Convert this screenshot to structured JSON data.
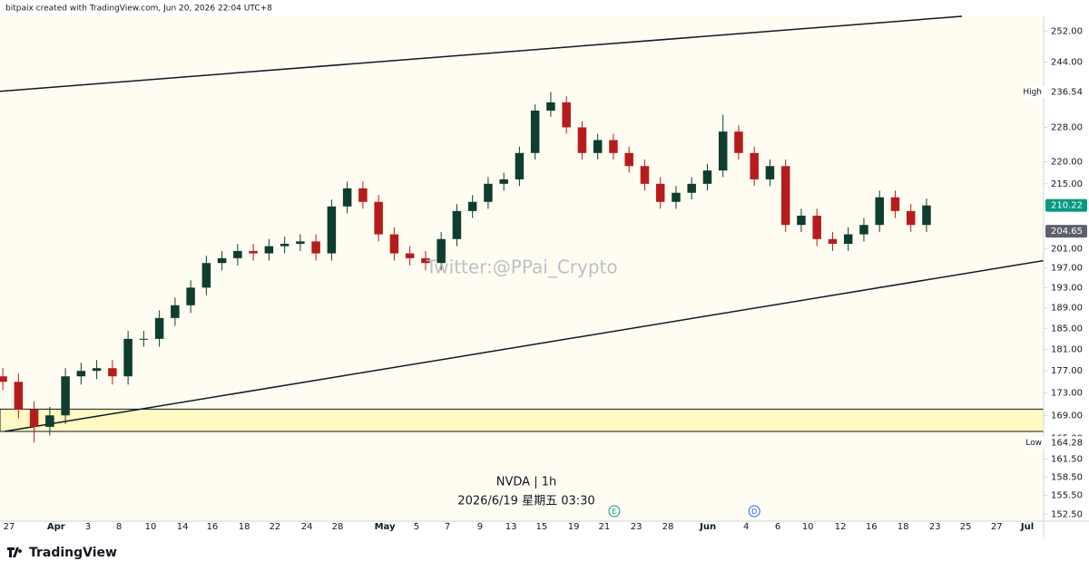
{
  "header": "bitpaix created with TradingView.com, Jun 20, 2026 22:04 UTC+8",
  "footer": "TradingView",
  "chart_data": {
    "type": "candlestick",
    "watermark": "Twitter:@PPai_Crypto",
    "legend": [
      "NVDA | 1h",
      "2026/6/19 星期五 03:30"
    ],
    "log_scale": true,
    "background": "#fffdf2",
    "up_color": "#0f3d2e",
    "down_color": "#b71c1c",
    "xlim": [
      -0.29,
      33.04
    ],
    "ylim": [
      151.4,
      255.9
    ],
    "xticks": [
      {
        "value": 0,
        "label": "27"
      },
      {
        "value": 1.5,
        "label": "Apr"
      },
      {
        "value": 2.52,
        "label": "3"
      },
      {
        "value": 3.51,
        "label": "8"
      },
      {
        "value": 4.52,
        "label": "10"
      },
      {
        "value": 5.54,
        "label": "14"
      },
      {
        "value": 6.49,
        "label": "16"
      },
      {
        "value": 7.51,
        "label": "18"
      },
      {
        "value": 8.49,
        "label": "22"
      },
      {
        "value": 9.51,
        "label": "24"
      },
      {
        "value": 10.49,
        "label": "28"
      },
      {
        "value": 12,
        "label": "May"
      },
      {
        "value": 13.01,
        "label": "5"
      },
      {
        "value": 14,
        "label": "7"
      },
      {
        "value": 15.04,
        "label": "9"
      },
      {
        "value": 16.03,
        "label": "13"
      },
      {
        "value": 17.01,
        "label": "15"
      },
      {
        "value": 18.03,
        "label": "19"
      },
      {
        "value": 19.01,
        "label": "21"
      },
      {
        "value": 20.03,
        "label": "23"
      },
      {
        "value": 21.04,
        "label": "28"
      },
      {
        "value": 22.32,
        "label": "Jun"
      },
      {
        "value": 23.54,
        "label": "4"
      },
      {
        "value": 24.55,
        "label": "6"
      },
      {
        "value": 25.51,
        "label": "10"
      },
      {
        "value": 26.55,
        "label": "12"
      },
      {
        "value": 27.54,
        "label": "16"
      },
      {
        "value": 28.55,
        "label": "18"
      },
      {
        "value": 29.57,
        "label": "23"
      },
      {
        "value": 30.55,
        "label": "25"
      },
      {
        "value": 31.54,
        "label": "27"
      },
      {
        "value": 32.52,
        "label": "Jul"
      }
    ],
    "yticks": [
      {
        "value": 252,
        "label": "252.00"
      },
      {
        "value": 244,
        "label": "244.00"
      },
      {
        "value": 228,
        "label": "228.00"
      },
      {
        "value": 220,
        "label": "220.00"
      },
      {
        "value": 215,
        "label": "215.00"
      },
      {
        "value": 201,
        "label": "201.00"
      },
      {
        "value": 197,
        "label": "197.00"
      },
      {
        "value": 193,
        "label": "193.00"
      },
      {
        "value": 189,
        "label": "189.00"
      },
      {
        "value": 185,
        "label": "185.00"
      },
      {
        "value": 181,
        "label": "181.00"
      },
      {
        "value": 177,
        "label": "177.00"
      },
      {
        "value": 173,
        "label": "173.00"
      },
      {
        "value": 169,
        "label": "169.00"
      },
      {
        "value": 165,
        "label": "165.00"
      },
      {
        "value": 161.5,
        "label": "161.50"
      },
      {
        "value": 158.5,
        "label": "158.50"
      },
      {
        "value": 155.5,
        "label": "155.50"
      },
      {
        "value": 152.5,
        "label": "152.50"
      }
    ],
    "x": [
      -0.2,
      0.3,
      0.8,
      1.3,
      1.8,
      2.3,
      2.8,
      3.3,
      3.8,
      4.3,
      4.8,
      5.3,
      5.8,
      6.3,
      6.8,
      7.3,
      7.8,
      8.3,
      8.8,
      9.3,
      9.8,
      10.3,
      10.8,
      11.3,
      11.8,
      12.3,
      12.8,
      13.3,
      13.8,
      14.3,
      14.8,
      15.3,
      15.8,
      16.3,
      16.8,
      17.3,
      17.8,
      18.3,
      18.8,
      19.3,
      19.8,
      20.3,
      20.8,
      21.3,
      21.8,
      22.3,
      22.8,
      23.3,
      23.8,
      24.3,
      24.8,
      25.3,
      25.8,
      26.3,
      26.8,
      27.3,
      27.8,
      28.3,
      28.8,
      29.3
    ],
    "open": [
      176,
      175,
      170,
      167,
      169,
      176,
      177,
      177.5,
      176,
      183,
      183,
      187,
      189.5,
      193,
      198,
      199,
      200.5,
      200,
      201.5,
      202,
      202.5,
      200,
      210,
      214,
      211,
      204,
      200,
      199,
      198,
      203,
      209,
      211,
      215,
      216,
      222,
      232,
      234,
      228,
      222,
      225,
      222,
      219,
      215,
      211,
      213,
      215,
      218,
      227,
      222,
      216,
      219,
      206,
      208,
      203,
      202,
      204,
      206,
      212,
      209,
      206
    ],
    "high": [
      177.5,
      176.5,
      171.5,
      170.5,
      177.5,
      178.5,
      179,
      179,
      184.5,
      184.5,
      188.5,
      191,
      194.5,
      199.5,
      200.5,
      202,
      202,
      203,
      203.5,
      204,
      204,
      211.5,
      215.5,
      215.5,
      212.5,
      205.5,
      201.5,
      200.5,
      204.5,
      210.5,
      212.5,
      216.5,
      217.5,
      223.5,
      233.5,
      236.54,
      235.5,
      229.5,
      226.5,
      226.5,
      223.5,
      220.5,
      216.5,
      214.5,
      216.5,
      219.5,
      231,
      228.5,
      223.5,
      220.5,
      220.5,
      209.5,
      209.5,
      204.5,
      205.5,
      207.5,
      213.5,
      213.5,
      210.5,
      211.72
    ],
    "low": [
      173.5,
      168.5,
      164.28,
      165.5,
      167.5,
      174.5,
      175.5,
      174.5,
      174.5,
      181.5,
      181.5,
      185.5,
      188,
      191.5,
      196.5,
      197.5,
      198.5,
      198.5,
      200,
      200.5,
      198.5,
      198.5,
      208.5,
      209.5,
      202.5,
      198.5,
      197.5,
      196.5,
      196.5,
      201.5,
      207.5,
      209.5,
      213.5,
      214.5,
      220.5,
      230.5,
      226.5,
      220.5,
      220.5,
      220.5,
      217.5,
      213.5,
      209.5,
      209.5,
      211.5,
      213.5,
      216.5,
      220.5,
      214.5,
      214.5,
      204.5,
      204.5,
      201.5,
      200.5,
      200.5,
      202.5,
      204.5,
      207.5,
      204.5,
      204.5
    ],
    "close": [
      175,
      170,
      167,
      169,
      176,
      177,
      177.5,
      176,
      183,
      183,
      187,
      189.5,
      193,
      198,
      199,
      200.5,
      200,
      201.5,
      202,
      202.5,
      200,
      210,
      214,
      211,
      204,
      200,
      199,
      198,
      203,
      209,
      211,
      215,
      216,
      222,
      232,
      234,
      228,
      222,
      225,
      222,
      219,
      215,
      211,
      213,
      215,
      218,
      227,
      222,
      216,
      219,
      206,
      208,
      203,
      202,
      204,
      206,
      212,
      209,
      206,
      210.22
    ],
    "trend_lines": [
      {
        "x": [
          -0.29,
          30.43
        ],
        "y": [
          236.7,
          255.9
        ],
        "color": "#131722"
      },
      {
        "x": [
          -0.14,
          33.04
        ],
        "y": [
          166.2,
          198.5
        ],
        "color": "#131722"
      }
    ],
    "zone": {
      "y": [
        166.2,
        170.1
      ],
      "color": "#fff9c4"
    },
    "events": [
      {
        "label": "E",
        "x": 19.33,
        "color": "#089981"
      },
      {
        "label": "D",
        "x": 23.8,
        "color": "#2962ff"
      }
    ],
    "price_labels": [
      {
        "name": "High",
        "value": 236.54
      },
      {
        "value": 210.22,
        "color": "#089981"
      },
      {
        "value": 204.65,
        "color": "#5d606b"
      },
      {
        "name": "Low",
        "value": 164.28
      }
    ]
  }
}
